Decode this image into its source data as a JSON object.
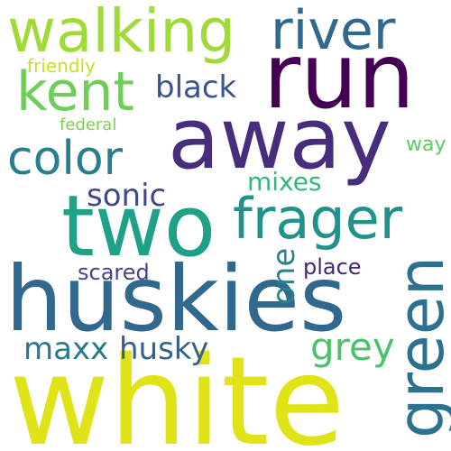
{
  "words": {
    "white": {
      "text": "white",
      "color": "#dfe318"
    },
    "huskies": {
      "text": "huskies",
      "color": "#31688e"
    },
    "two": {
      "text": "two",
      "color": "#1fa187"
    },
    "away": {
      "text": "away",
      "color": "#472d7b"
    },
    "run": {
      "text": "run",
      "color": "#440154"
    },
    "walking": {
      "text": "walking",
      "color": "#a0da39"
    },
    "river": {
      "text": "river",
      "color": "#30688e"
    },
    "kent": {
      "text": "kent",
      "color": "#6ece58"
    },
    "black": {
      "text": "black",
      "color": "#3b528b"
    },
    "friendly": {
      "text": "friendly",
      "color": "#c8e020"
    },
    "color": {
      "text": "color",
      "color": "#277f8e"
    },
    "frager": {
      "text": "frager",
      "color": "#21918c"
    },
    "green": {
      "text": "green",
      "color": "#2c728e"
    },
    "sonic": {
      "text": "sonic",
      "color": "#3e4989"
    },
    "mixes": {
      "text": "mixes",
      "color": "#35b779"
    },
    "federal": {
      "text": "federal",
      "color": "#7ad151"
    },
    "way": {
      "text": "way",
      "color": "#5ec962"
    },
    "one": {
      "text": "one",
      "color": "#26828e"
    },
    "place": {
      "text": "place",
      "color": "#482475"
    },
    "scared": {
      "text": "scared",
      "color": "#414487"
    },
    "grey": {
      "text": "grey",
      "color": "#4ac16d"
    },
    "maxx": {
      "text": "maxx",
      "color": "#2a788e"
    },
    "husky": {
      "text": "husky",
      "color": "#355f8d"
    }
  }
}
